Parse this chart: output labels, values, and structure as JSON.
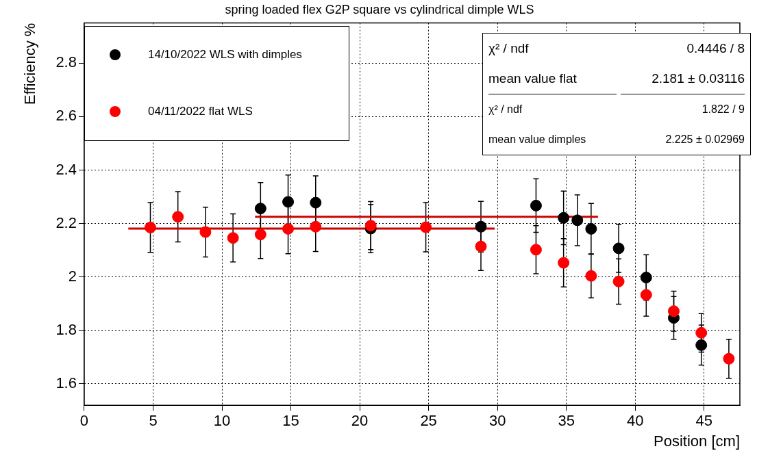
{
  "chart_data": {
    "type": "scatter",
    "title": "spring loaded flex G2P square vs cylindrical dimple WLS",
    "xlabel": "Position [cm]",
    "ylabel": "Efficiency %",
    "xlim": [
      0,
      47.6
    ],
    "xticks": [
      0,
      5,
      10,
      15,
      20,
      25,
      30,
      35,
      40,
      45
    ],
    "ylim": [
      1.52,
      2.95
    ],
    "yticks": [
      1.6,
      1.8,
      2,
      2.2,
      2.4,
      2.6,
      2.8
    ],
    "grid": true,
    "legend": "top left",
    "marker": "circle",
    "series": [
      {
        "name": "14/10/2022 WLS with dimples",
        "color": "#000000",
        "x": [
          12.8,
          14.8,
          16.8,
          20.8,
          28.8,
          32.8,
          34.8,
          35.8,
          36.8,
          38.8,
          40.8,
          42.8,
          44.8
        ],
        "values": [
          2.256,
          2.281,
          2.278,
          2.181,
          2.188,
          2.267,
          2.221,
          2.212,
          2.18,
          2.107,
          1.998,
          1.847,
          1.745
        ],
        "errors": [
          0.097,
          0.1,
          0.1,
          0.09,
          0.095,
          0.1,
          0.1,
          0.095,
          0.095,
          0.09,
          0.085,
          0.08,
          0.075
        ]
      },
      {
        "name": "04/11/2022 flat WLS",
        "color": "#ff0000",
        "x": [
          4.8,
          6.8,
          8.8,
          10.8,
          12.8,
          14.8,
          16.8,
          20.8,
          24.8,
          28.8,
          32.8,
          34.8,
          36.8,
          38.8,
          40.8,
          42.8,
          44.8,
          46.8
        ],
        "values": [
          2.185,
          2.225,
          2.168,
          2.146,
          2.159,
          2.18,
          2.188,
          2.192,
          2.186,
          2.114,
          2.102,
          2.053,
          2.004,
          1.983,
          1.933,
          1.872,
          1.791,
          1.694
        ],
        "errors": [
          0.093,
          0.094,
          0.093,
          0.09,
          0.09,
          0.093,
          0.093,
          0.09,
          0.092,
          0.09,
          0.09,
          0.09,
          0.082,
          0.085,
          0.08,
          0.075,
          0.072,
          0.073
        ]
      },
      {
        "type": "line",
        "color": "#cc0000",
        "marker": "none",
        "x": [
          3.2,
          29.8
        ],
        "values": [
          2.181,
          2.181
        ]
      },
      {
        "type": "line",
        "color": "#cc0000",
        "marker": "none",
        "x": [
          12.4,
          37.3
        ],
        "values": [
          2.225,
          2.225
        ]
      }
    ],
    "annotations": [
      "χ² / ndf",
      "0.4446 / 8",
      "mean value flat",
      "2.181 ± 0.03116",
      "χ² / ndf",
      "1.822 / 9",
      "mean value dimples",
      "2.225 ± 0.02969"
    ]
  }
}
